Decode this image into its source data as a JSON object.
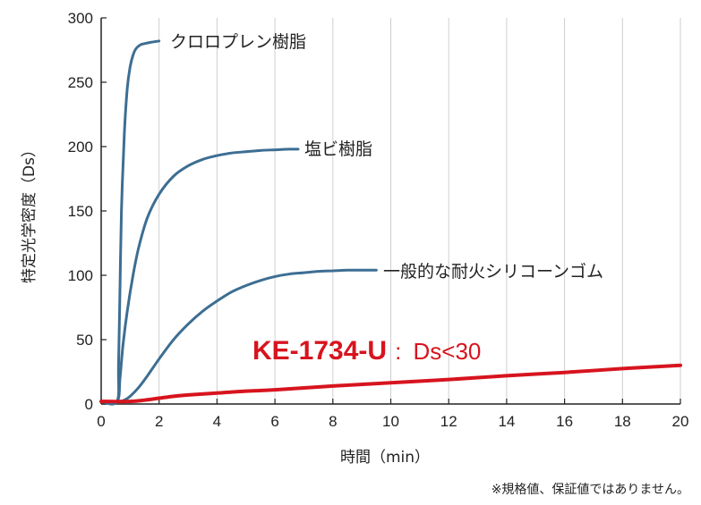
{
  "chart_data": {
    "type": "line",
    "title": "",
    "xlabel": "時間（min）",
    "ylabel": "特定光学密度（Ds）",
    "xlim": [
      0,
      20
    ],
    "ylim": [
      0,
      300
    ],
    "x_ticks": [
      0,
      2,
      4,
      6,
      8,
      10,
      12,
      14,
      16,
      18,
      20
    ],
    "y_ticks": [
      0,
      50,
      100,
      150,
      200,
      250,
      300
    ],
    "grid": "vertical-only",
    "note": "※規格値、保証値ではありません。",
    "series": [
      {
        "name": "クロロプレン樹脂",
        "color": "#3d6e93",
        "x": [
          0,
          0.55,
          0.6,
          0.65,
          0.7,
          0.8,
          0.9,
          1.0,
          1.1,
          1.2,
          1.35,
          1.5,
          1.7,
          2.0
        ],
        "y": [
          2,
          2,
          30,
          90,
          150,
          210,
          245,
          262,
          271,
          276,
          279,
          280,
          281,
          282
        ]
      },
      {
        "name": "塩ビ樹脂",
        "color": "#3d6e93",
        "x": [
          0,
          0.55,
          0.65,
          0.75,
          0.9,
          1.1,
          1.3,
          1.6,
          2.0,
          2.5,
          3.0,
          3.5,
          4.0,
          4.5,
          5.0,
          5.5,
          6.0,
          6.5,
          6.8
        ],
        "y": [
          2,
          2,
          20,
          45,
          72,
          100,
          122,
          145,
          163,
          177,
          185,
          190,
          193,
          195,
          196,
          197,
          197.5,
          198,
          198
        ]
      },
      {
        "name": "一般的な耐火シリコーンゴム",
        "color": "#3d6e93",
        "x": [
          0,
          0.6,
          0.8,
          1.0,
          1.3,
          1.6,
          2.0,
          2.5,
          3.0,
          3.5,
          4.0,
          4.5,
          5.0,
          5.5,
          6.0,
          6.5,
          7.0,
          7.5,
          8.0,
          8.5,
          9.0,
          9.5
        ],
        "y": [
          2,
          2,
          3,
          6,
          13,
          22,
          35,
          50,
          62,
          72,
          80,
          87,
          92,
          96,
          99,
          101,
          102,
          103,
          103.5,
          104,
          104,
          104
        ]
      },
      {
        "name": "KE-1734-U",
        "color": "#d7141e",
        "x": [
          0,
          1.0,
          1.5,
          2.0,
          2.5,
          3.0,
          4.0,
          5.0,
          6.0,
          8.0,
          10.0,
          12.0,
          14.0,
          16.0,
          18.0,
          20.0
        ],
        "y": [
          2,
          2,
          3,
          4.5,
          6,
          7,
          8.5,
          10,
          11,
          14,
          16.5,
          19,
          22,
          24.5,
          27.5,
          30
        ]
      }
    ],
    "labels": {
      "chloroprene": "クロロプレン樹脂",
      "pvc": "塩ビ樹脂",
      "silicone": "一般的な耐火シリコーンゴム",
      "ke_main": "KE-1734-U",
      "ke_sep": ":",
      "ke_value": "Ds<30"
    }
  }
}
